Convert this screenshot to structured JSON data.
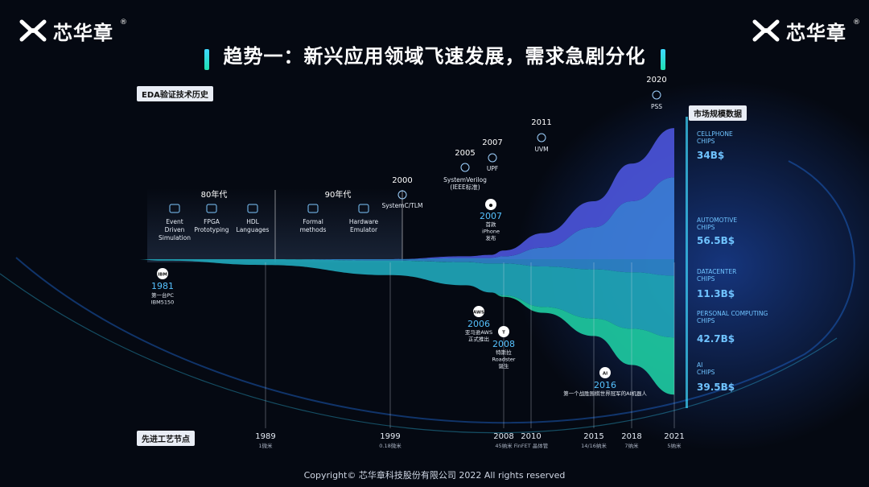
{
  "header": {
    "brand": "芯华章",
    "reg_mark": "®",
    "title": "趋势一：新兴应用领域飞速发展，需求急剧分化"
  },
  "left_tag": "EDA验证技术历史",
  "bottom_tag": "先进工艺节点",
  "right_tag": "市场规模数据",
  "copyright": "Copyright© 芯华章科技股份有限公司 2022 All rights reserved",
  "colors": {
    "background": "#050912",
    "cellphone": "#4b54d8",
    "automotive": "#3e7fdc",
    "datacenter": "#2e84c9",
    "personal": "#1fa6b8",
    "ai": "#1ec9a0",
    "accent": "#3fd9ff"
  },
  "eras": [
    {
      "label": "80年代",
      "items": [
        {
          "text": "Event Driven Simulation",
          "icon": "terminal-icon"
        },
        {
          "text": "FPGA Prototyping",
          "icon": "chip-icon"
        },
        {
          "text": "HDL Languages",
          "icon": "code-icon"
        }
      ]
    },
    {
      "label": "90年代",
      "items": [
        {
          "text": "Formal methods",
          "icon": "check-doc-icon"
        },
        {
          "text": "Hardware Emulator",
          "icon": "hardware-icon"
        }
      ]
    }
  ],
  "eda_milestones": [
    {
      "year": "2000",
      "label": "SystemC/TLM",
      "icon": "target-icon"
    },
    {
      "year": "2005",
      "label": "SystemVerilog (IEEE标准)",
      "icon": "sv-icon"
    },
    {
      "year": "2007",
      "label": "UPF",
      "icon": "upf-icon"
    },
    {
      "year": "2011",
      "label": "UVM",
      "icon": "uvm-icon"
    },
    {
      "year": "2020",
      "label": "PSS",
      "icon": "pss-icon"
    }
  ],
  "events": [
    {
      "year": "1981",
      "label": "第一台PC IBM5150",
      "badge": "IBM"
    },
    {
      "year": "2007",
      "label": "首款 iPhone 发布",
      "badge": "apple"
    },
    {
      "year": "2006",
      "label": "亚马逊AWS 正式推出",
      "badge": "AWS"
    },
    {
      "year": "2008",
      "label": "特斯拉 Roadster 诞生",
      "badge": "T"
    },
    {
      "year": "2016",
      "label": "第一个战胜围棋世界冠军的AI机器人",
      "badge": "AI"
    }
  ],
  "process_nodes": [
    {
      "year": "1989",
      "node": "1微米"
    },
    {
      "year": "1999",
      "node": "0.18微米"
    },
    {
      "year": "2008",
      "node": "45纳米"
    },
    {
      "year": "2010",
      "node": "FinFET 晶体管"
    },
    {
      "year": "2015",
      "node": "14/16纳米"
    },
    {
      "year": "2018",
      "node": "7纳米"
    },
    {
      "year": "2021",
      "node": "5纳米"
    }
  ],
  "chart_data": {
    "type": "area",
    "x": [
      1975,
      1981,
      1989,
      1999,
      2005,
      2007,
      2008,
      2011,
      2015,
      2018,
      2021
    ],
    "series": [
      {
        "name": "CELLPHONE CHIPS",
        "value_label": "34B$",
        "values": [
          0,
          0,
          0,
          0,
          1,
          2,
          4,
          10,
          18,
          26,
          34
        ]
      },
      {
        "name": "AUTOMOTIVE CHIPS",
        "value_label": "56.5B$",
        "values": [
          0,
          0,
          0,
          0,
          1,
          1,
          2,
          8,
          22,
          40,
          56.5
        ]
      },
      {
        "name": "DATACENTER CHIPS",
        "value_label": "11.3B$",
        "values": [
          0,
          0,
          0,
          1,
          2,
          3,
          3,
          5,
          7,
          9,
          11.3
        ]
      },
      {
        "name": "PERSONAL COMPUTING CHIPS",
        "value_label": "42.7B$",
        "values": [
          0,
          1,
          4,
          10,
          16,
          20,
          22,
          28,
          34,
          39,
          42.7
        ]
      },
      {
        "name": "AI CHIPS",
        "value_label": "39.5B$",
        "values": [
          0,
          0,
          0,
          0,
          0,
          0,
          1,
          4,
          12,
          25,
          39.5
        ]
      }
    ]
  }
}
